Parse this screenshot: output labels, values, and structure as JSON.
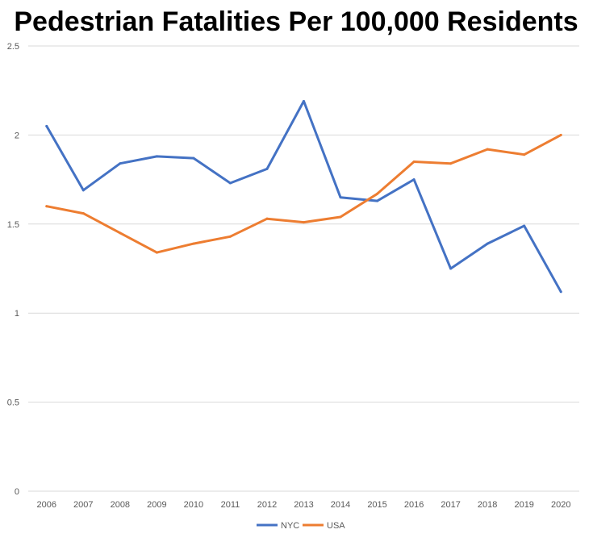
{
  "chart_data": {
    "type": "line",
    "title": "Pedestrian Fatalities Per 100,000 Residents",
    "xlabel": "",
    "ylabel": "",
    "categories": [
      "2006",
      "2007",
      "2008",
      "2009",
      "2010",
      "2011",
      "2012",
      "2013",
      "2014",
      "2015",
      "2016",
      "2017",
      "2018",
      "2019",
      "2020"
    ],
    "ylim": [
      0,
      2.5
    ],
    "yticks": [
      "0",
      "0.5",
      "1",
      "1.5",
      "2",
      "2.5"
    ],
    "grid": true,
    "legend_position": "bottom",
    "series": [
      {
        "name": "NYC",
        "color": "#4472c4",
        "values": [
          2.05,
          1.69,
          1.84,
          1.88,
          1.87,
          1.73,
          1.81,
          2.19,
          1.65,
          1.63,
          1.75,
          1.25,
          1.39,
          1.49,
          1.12
        ]
      },
      {
        "name": "USA",
        "color": "#ed7d31",
        "values": [
          1.6,
          1.56,
          1.45,
          1.34,
          1.39,
          1.43,
          1.53,
          1.51,
          1.54,
          1.67,
          1.85,
          1.84,
          1.92,
          1.89,
          2.0
        ]
      }
    ]
  }
}
